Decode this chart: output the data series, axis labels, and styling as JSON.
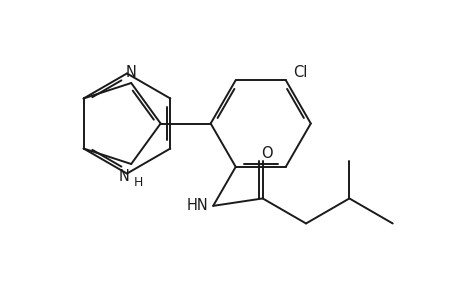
{
  "background_color": "#ffffff",
  "line_color": "#1a1a1a",
  "line_width": 1.4,
  "dbo": 0.055,
  "font_size": 10.5,
  "fig_width": 4.6,
  "fig_height": 3.0,
  "dpi": 100,
  "xlim": [
    0.0,
    7.2
  ],
  "ylim": [
    0.2,
    5.2
  ]
}
